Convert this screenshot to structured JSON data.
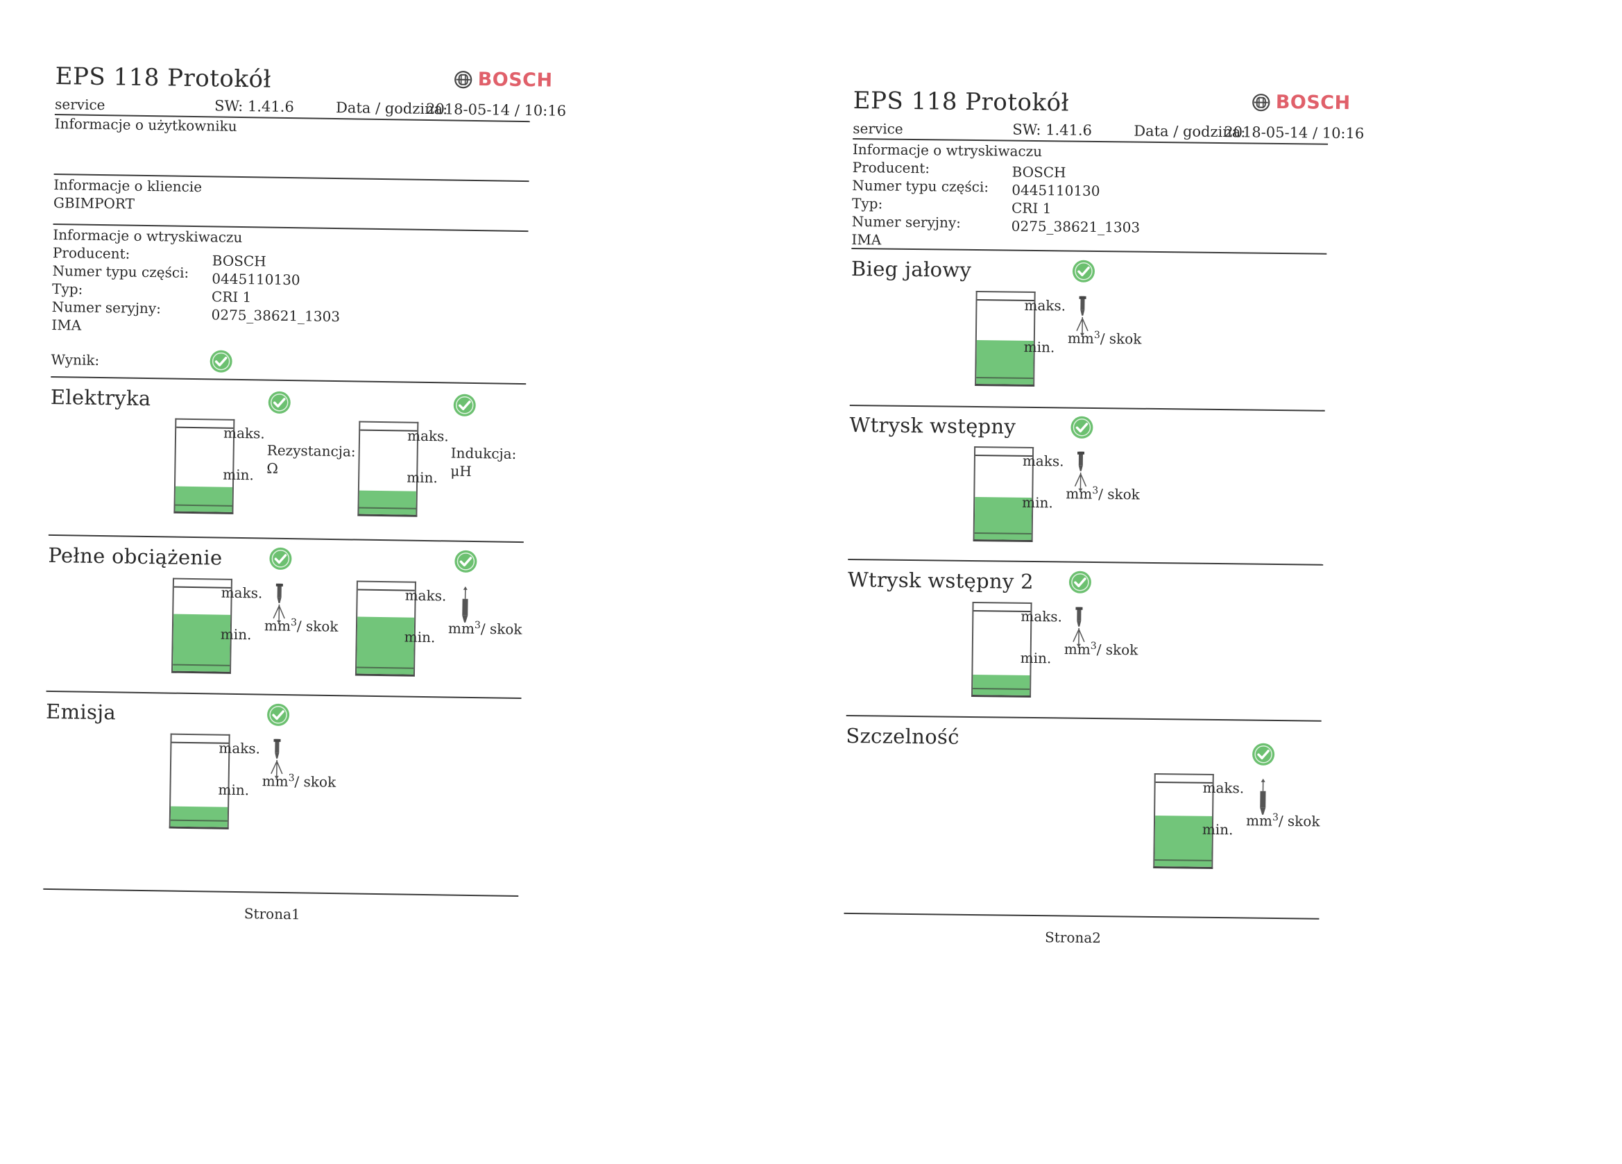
{
  "brand": "BOSCH",
  "colors": {
    "ok": "#6cc070",
    "fill": "#72c57a",
    "brand": "#e0606a"
  },
  "units": {
    "maks": "maks.",
    "min": "min.",
    "mm": "mm",
    "sup": "3",
    "skok": "/ skok"
  },
  "page1": {
    "title": "EPS 118 Protokół",
    "service": "service",
    "sw": "SW: 1.41.6",
    "date_label": "Data / godzina:",
    "date_value": "2018-05-14 / 10:16",
    "user_info": "Informacje o użytkowniku",
    "client_info": "Informacje o kliencie",
    "client_name": "GBIMPORT",
    "injector_info": "Informacje o wtryskiwaczu",
    "labels": [
      "Producent:",
      "Numer typu części:",
      "Typ:",
      "Numer seryjny:",
      "IMA"
    ],
    "values": [
      "BOSCH",
      "0445110130",
      "CRI 1",
      "0275_38621_1303"
    ],
    "result_label": "Wynik:",
    "sections": {
      "elektryka": {
        "title": "Elektryka",
        "res_label": "Rezystancja:",
        "res_unit": "Ω",
        "ind_label": "Indukcja:",
        "ind_unit": "μH",
        "fill1": 0.27,
        "fill2": 0.26
      },
      "pelne": {
        "title": "Pełne obciążenie",
        "fill1": 0.62,
        "fill2": 0.62
      },
      "emisja": {
        "title": "Emisja",
        "fill1": 0.22
      }
    },
    "footer": "Strona1"
  },
  "page2": {
    "title": "EPS 118 Protokół",
    "service": "service",
    "sw": "SW: 1.41.6",
    "date_label": "Data / godzina:",
    "date_value": "2018-05-14 / 10:16",
    "injector_info": "Informacje o wtryskiwaczu",
    "labels": [
      "Producent:",
      "Numer typu części:",
      "Typ:",
      "Numer seryjny:",
      "IMA"
    ],
    "values": [
      "BOSCH",
      "0445110130",
      "CRI 1",
      "0275_38621_1303"
    ],
    "sections": {
      "bieg": {
        "title": "Bieg jałowy",
        "fill1": 0.48
      },
      "wtrysk1": {
        "title": "Wtrysk wstępny",
        "fill1": 0.46
      },
      "wtrysk2": {
        "title": "Wtrysk wstępny 2",
        "fill1": 0.22
      },
      "szczelnosc": {
        "title": "Szczelność",
        "fill1": 0.55
      }
    },
    "footer": "Strona2"
  }
}
